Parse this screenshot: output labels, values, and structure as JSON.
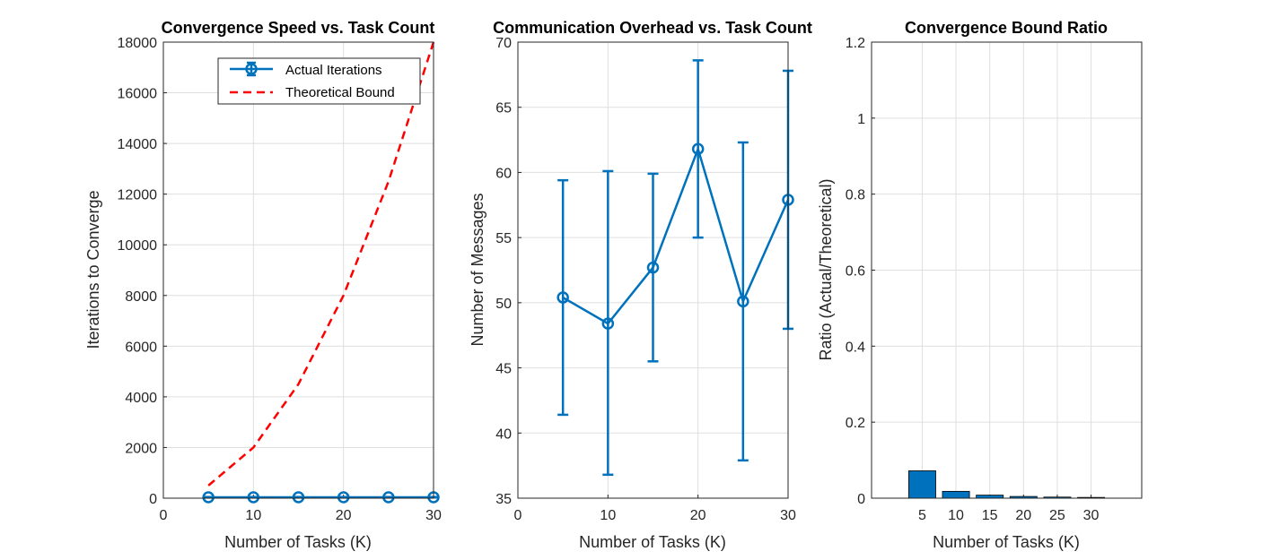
{
  "colors": {
    "primary": "#0072BD",
    "bound": "#FF0000",
    "grid": "#DFDFDF",
    "axis": "#262626"
  },
  "chart_data": [
    {
      "type": "line",
      "title": "Convergence Speed vs. Task Count",
      "xlabel": "Number of Tasks (K)",
      "ylabel": "Iterations to Converge",
      "xlim": [
        0,
        30
      ],
      "ylim": [
        0,
        18000
      ],
      "xticks": [
        0,
        10,
        20,
        30
      ],
      "yticks": [
        0,
        2000,
        4000,
        6000,
        8000,
        10000,
        12000,
        14000,
        16000,
        18000
      ],
      "grid": true,
      "legend_position": "top-right",
      "series": [
        {
          "name": "Actual Iterations",
          "style": "solid-errorbar-circle",
          "x": [
            5,
            10,
            15,
            20,
            25,
            30
          ],
          "values": [
            36,
            36,
            36,
            36,
            36,
            36
          ],
          "err": [
            10,
            10,
            10,
            10,
            10,
            10
          ]
        },
        {
          "name": "Theoretical Bound",
          "style": "dashed",
          "x": [
            5,
            10,
            15,
            20,
            25,
            30
          ],
          "values": [
            500,
            2000,
            4500,
            8000,
            12500,
            18000
          ]
        }
      ]
    },
    {
      "type": "line",
      "title": "Communication Overhead vs. Task Count",
      "xlabel": "Number of Tasks (K)",
      "ylabel": "Number of Messages",
      "xlim": [
        0,
        30
      ],
      "ylim": [
        35,
        70
      ],
      "xticks": [
        0,
        10,
        20,
        30
      ],
      "yticks": [
        35,
        40,
        45,
        50,
        55,
        60,
        65,
        70
      ],
      "grid": true,
      "series": [
        {
          "style": "solid-errorbar-circle",
          "x": [
            5,
            10,
            15,
            20,
            25,
            30
          ],
          "values": [
            50.4,
            48.4,
            52.7,
            61.8,
            50.1,
            57.9
          ],
          "lower": [
            41.4,
            36.8,
            45.5,
            55.0,
            37.9,
            48.0
          ],
          "upper": [
            59.4,
            60.1,
            59.9,
            68.6,
            62.3,
            67.8
          ]
        }
      ]
    },
    {
      "type": "bar",
      "title": "Convergence Bound Ratio",
      "xlabel": "Number of Tasks (K)",
      "ylabel": "Ratio (Actual/Theoretical)",
      "categories": [
        "5",
        "10",
        "15",
        "20",
        "25",
        "30"
      ],
      "values": [
        0.072,
        0.018,
        0.008,
        0.0045,
        0.0029,
        0.002
      ],
      "ylim": [
        0,
        1.2
      ],
      "yticks": [
        "0",
        "0.2",
        "0.4",
        "0.6",
        "0.8",
        "1",
        "1.2"
      ],
      "grid": true
    }
  ]
}
